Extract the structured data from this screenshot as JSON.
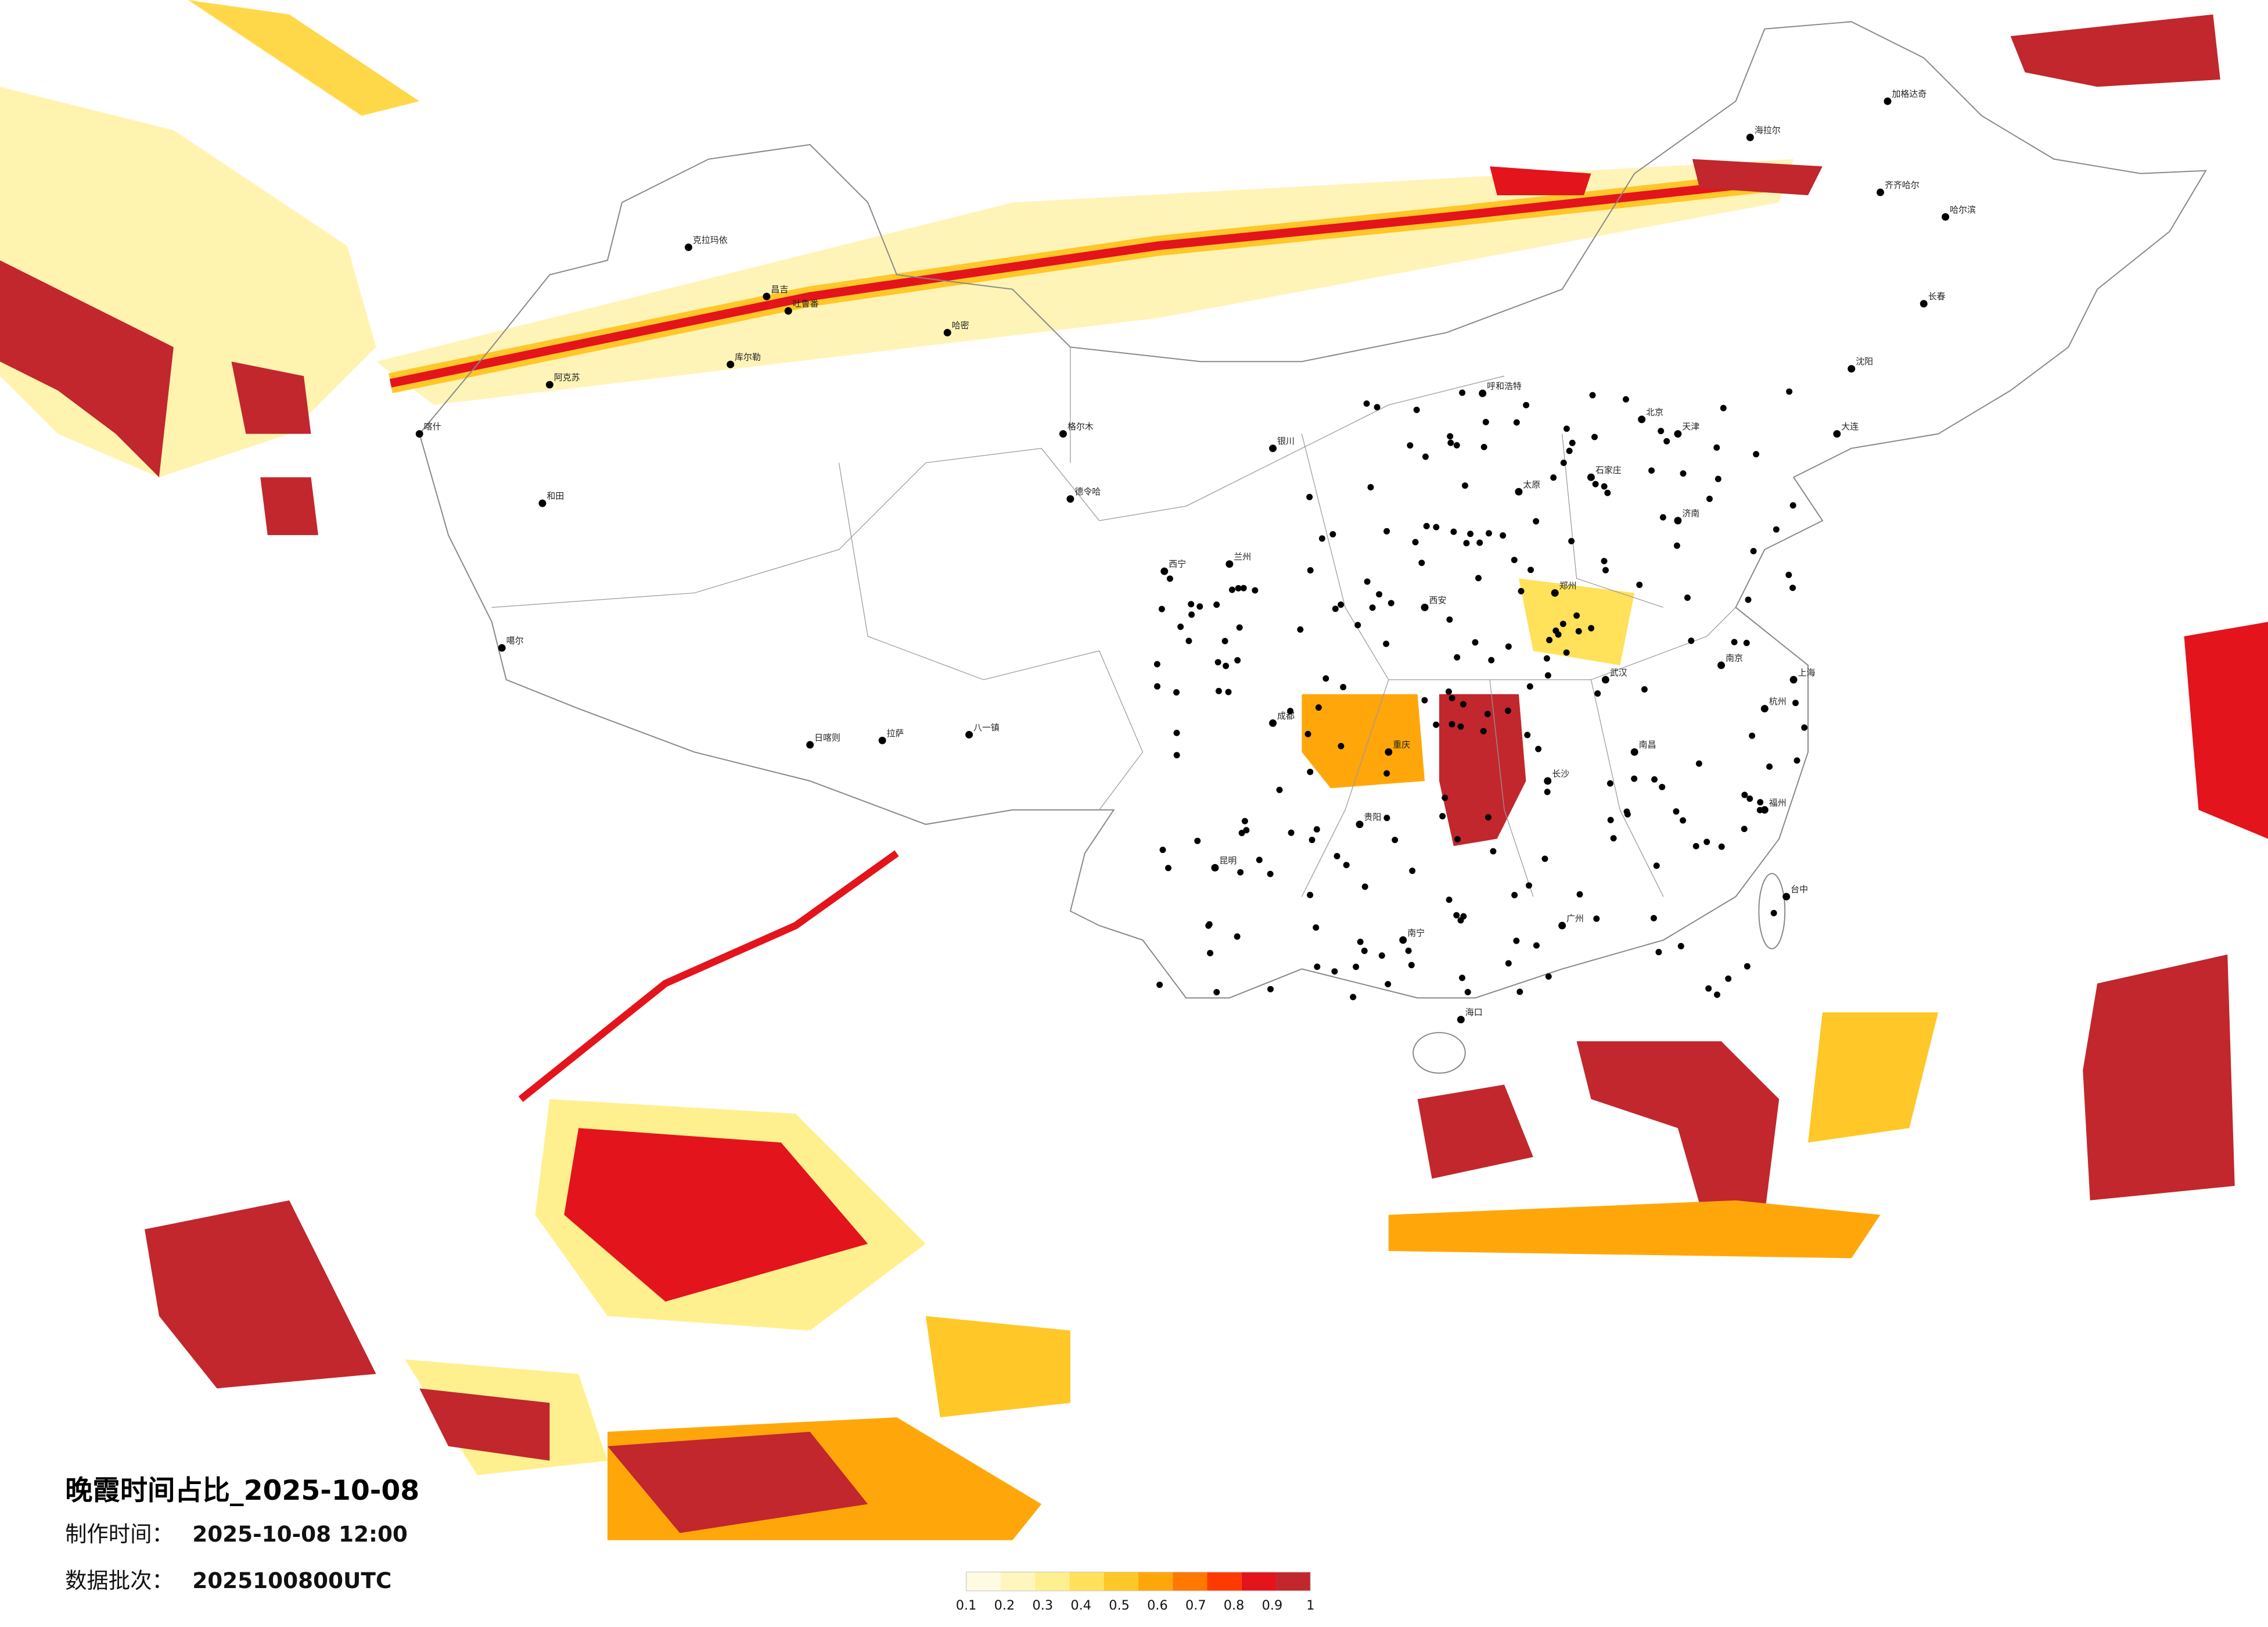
{
  "title": "晚霞时间占比_2025-10-08",
  "info": [
    {
      "label": "制作时间：",
      "value": "2025-10-08 12:00"
    },
    {
      "label": "数据批次：",
      "value": "2025100800UTC"
    }
  ],
  "legend": {
    "colors": [
      "#fffbe3",
      "#fff6bd",
      "#fff08f",
      "#ffe15a",
      "#ffc727",
      "#ffa70a",
      "#ff7800",
      "#ff3a00",
      "#e3141c",
      "#c1272d"
    ],
    "ticks": [
      0.1,
      0.2,
      0.3,
      0.4,
      0.5,
      0.6,
      0.7,
      0.8,
      0.9,
      1
    ]
  },
  "cities": [
    "克拉玛依",
    "昌吉",
    "吐鲁番",
    "哈密",
    "库尔勒",
    "阿克苏",
    "喀什",
    "和田",
    "噶尔",
    "日喀则",
    "拉萨",
    "八一镇",
    "格尔木",
    "德令哈",
    "西宁",
    "兰州",
    "银川",
    "呼和浩特",
    "北京",
    "天津",
    "石家庄",
    "太原",
    "济南",
    "郑州",
    "西安",
    "成都",
    "重庆",
    "武汉",
    "长沙",
    "南京",
    "上海",
    "杭州",
    "福州",
    "南昌",
    "贵阳",
    "昆明",
    "南宁",
    "广州",
    "海口",
    "台中",
    "哈尔滨",
    "长春",
    "沈阳",
    "大连",
    "齐齐哈尔",
    "海拉尔",
    "加格达奇"
  ]
}
